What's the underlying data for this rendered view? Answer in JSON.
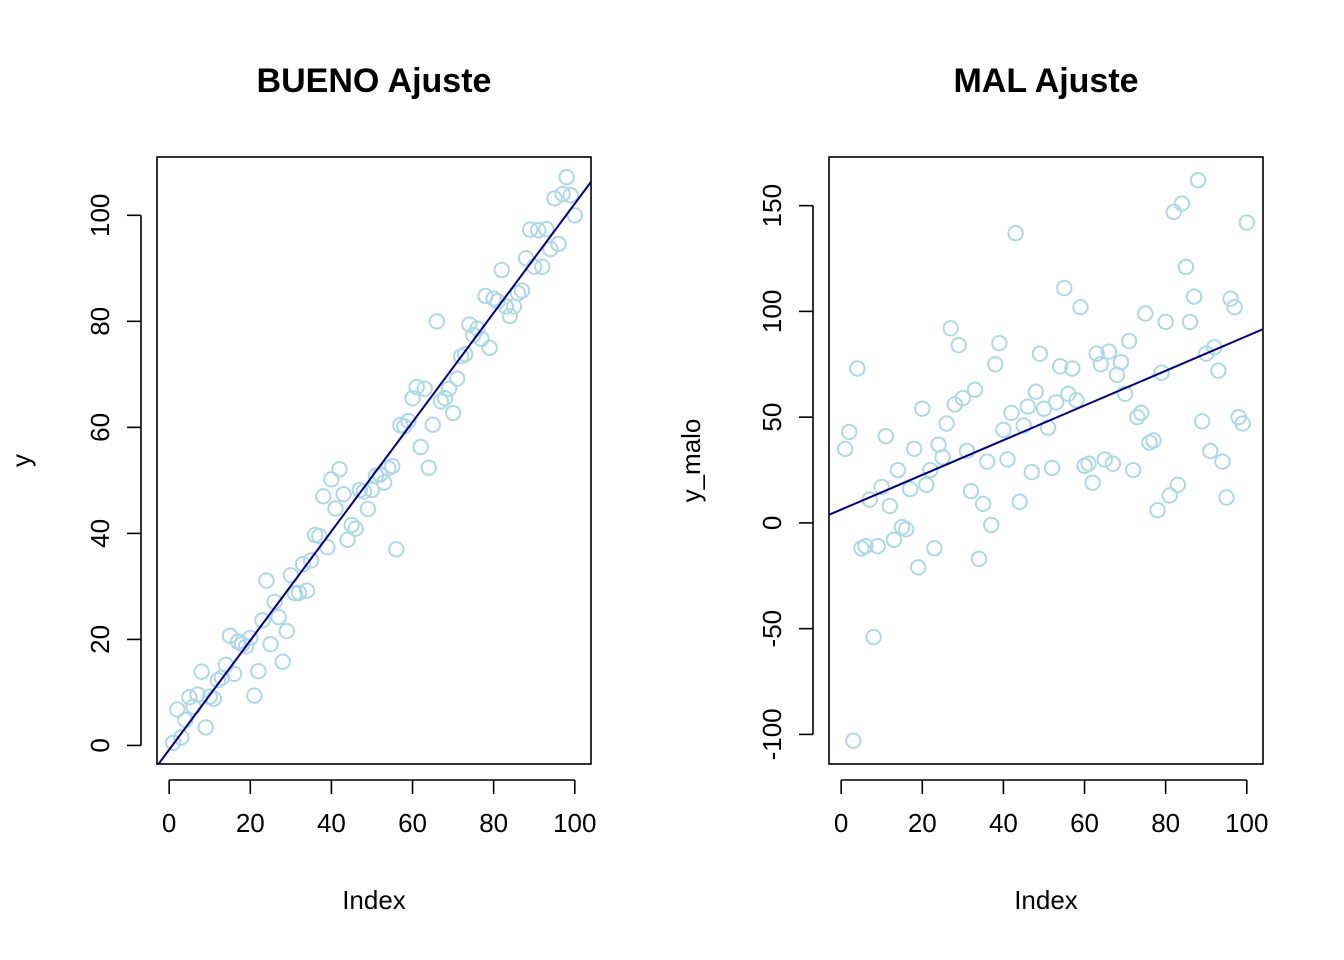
{
  "chart_data": [
    {
      "type": "scatter",
      "title": "BUENO Ajuste",
      "xlabel": "Index",
      "ylabel": "y",
      "xlim": [
        -3,
        104
      ],
      "ylim": [
        -3.5,
        111
      ],
      "xticks": [
        0,
        20,
        40,
        60,
        80,
        100
      ],
      "yticks": [
        0,
        20,
        40,
        60,
        80,
        100
      ],
      "point_color": "#add8e6",
      "line_color": "#000080",
      "grid": false,
      "legend": "none",
      "fit_line": {
        "intercept": -0.8,
        "slope": 1.03
      },
      "series": [
        {
          "x": [
            1,
            2,
            3,
            4,
            5,
            6,
            7,
            8,
            9,
            10,
            11,
            12,
            13,
            14,
            15,
            16,
            17,
            18,
            19,
            20,
            21,
            22,
            23,
            24,
            25,
            26,
            27,
            28,
            29,
            30,
            31,
            32,
            33,
            34,
            35,
            36,
            37,
            38,
            39,
            40,
            41,
            42,
            43,
            44,
            45,
            46,
            47,
            48,
            49,
            50,
            51,
            52,
            53,
            54,
            55,
            56,
            57,
            58,
            59,
            60,
            61,
            62,
            63,
            64,
            65,
            66,
            67,
            68,
            69,
            70,
            71,
            72,
            73,
            74,
            75,
            76,
            77,
            78,
            79,
            80,
            81,
            82,
            83,
            84,
            85,
            86,
            87,
            88,
            89,
            90,
            91,
            92,
            93,
            94,
            95,
            96,
            97,
            98,
            99,
            100
          ],
          "y": [
            0.5,
            6.8,
            1.5,
            4.8,
            9.1,
            7.3,
            9.6,
            13.9,
            3.4,
            9.2,
            8.8,
            12.3,
            12.8,
            15.2,
            20.7,
            13.5,
            19.6,
            19.1,
            18.7,
            20.3,
            9.4,
            14.0,
            23.6,
            31.1,
            19.1,
            27.1,
            24.2,
            15.8,
            21.6,
            32.1,
            28.7,
            28.8,
            34.2,
            29.2,
            34.9,
            39.7,
            39.5,
            47.0,
            37.4,
            50.2,
            44.7,
            52.1,
            47.4,
            38.8,
            41.6,
            40.9,
            48.2,
            47.9,
            44.6,
            48.2,
            50.9,
            51.1,
            49.6,
            52.3,
            52.7,
            37.0,
            60.4,
            60.2,
            61.2,
            65.5,
            67.6,
            56.3,
            67.3,
            52.4,
            60.5,
            80.0,
            64.9,
            65.5,
            67.3,
            62.7,
            69.2,
            73.4,
            73.8,
            79.4,
            77.4,
            78.6,
            76.7,
            84.8,
            75.0,
            84.3,
            83.8,
            89.7,
            82.8,
            81.0,
            82.8,
            85.3,
            85.8,
            91.9,
            97.3,
            90.3,
            97.2,
            90.3,
            97.4,
            93.6,
            103.2,
            94.6,
            104.0,
            107.2,
            103.8,
            100.0
          ]
        }
      ]
    },
    {
      "type": "scatter",
      "title": "MAL Ajuste",
      "xlabel": "Index",
      "ylabel": "y_malo",
      "xlim": [
        -3,
        104
      ],
      "ylim": [
        -114,
        173
      ],
      "xticks": [
        0,
        20,
        40,
        60,
        80,
        100
      ],
      "yticks": [
        -100,
        -50,
        0,
        50,
        100,
        150
      ],
      "point_color": "#add8e6",
      "line_color": "#000080",
      "grid": false,
      "legend": "none",
      "fit_line": {
        "intercept": 6.3,
        "slope": 0.82
      },
      "series": [
        {
          "x": [
            1,
            2,
            3,
            4,
            5,
            6,
            7,
            8,
            9,
            10,
            11,
            12,
            13,
            14,
            15,
            16,
            17,
            18,
            19,
            20,
            21,
            22,
            23,
            24,
            25,
            26,
            27,
            28,
            29,
            30,
            31,
            32,
            33,
            34,
            35,
            36,
            37,
            38,
            39,
            40,
            41,
            42,
            43,
            44,
            45,
            46,
            47,
            48,
            49,
            50,
            51,
            52,
            53,
            54,
            55,
            56,
            57,
            58,
            59,
            60,
            61,
            62,
            63,
            64,
            65,
            66,
            67,
            68,
            69,
            70,
            71,
            72,
            73,
            74,
            75,
            76,
            77,
            78,
            79,
            80,
            81,
            82,
            83,
            84,
            85,
            86,
            87,
            88,
            89,
            90,
            91,
            92,
            93,
            94,
            95,
            96,
            97,
            98,
            99,
            100
          ],
          "y": [
            35,
            43,
            -103,
            73,
            -12,
            -11,
            11,
            -54,
            -11,
            17,
            41,
            8,
            -8,
            25,
            -2,
            -3,
            16,
            35,
            -21,
            54,
            18,
            25,
            -12,
            37,
            31,
            47,
            92,
            56,
            84,
            59,
            34,
            15,
            63,
            -17,
            9,
            29,
            -1,
            75,
            85,
            44,
            30,
            52,
            137,
            10,
            46,
            55,
            24,
            62,
            80,
            54,
            45,
            26,
            57,
            74,
            111,
            61,
            73,
            58,
            102,
            27,
            28,
            19,
            80,
            75,
            30,
            81,
            28,
            70,
            76,
            61,
            86,
            25,
            50,
            52,
            99,
            38,
            39,
            6,
            71,
            95,
            13,
            147,
            18,
            151,
            121,
            95,
            107,
            162,
            48,
            80,
            34,
            83,
            72,
            29,
            12,
            106,
            102,
            50,
            47,
            142
          ]
        }
      ]
    }
  ]
}
